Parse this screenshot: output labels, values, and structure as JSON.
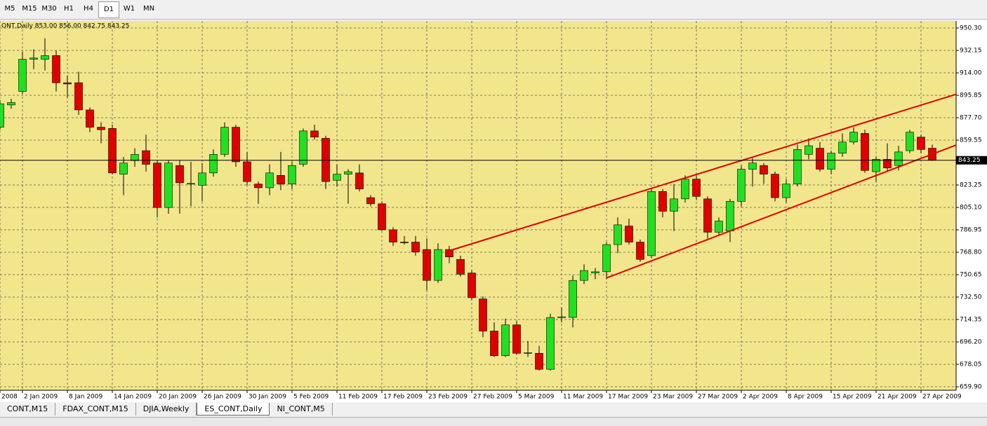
{
  "toolbar": {
    "buttons": [
      "M5",
      "M15",
      "M30",
      "H1",
      "H4",
      "D1",
      "W1",
      "MN"
    ],
    "active": "D1"
  },
  "tabs": {
    "items": [
      "CONT,M15",
      "FDAX_CONT,M15",
      "DJIA,Weekly",
      "ES_CONT,Daily",
      "NI_CONT,M5"
    ],
    "active": "ES_CONT,Daily"
  },
  "chart_data": {
    "type": "candlestick",
    "header": "ONT,Daily  853.00 856.00 842.75 843.25",
    "up_color": "#21e021",
    "down_color": "#e00000",
    "background": "#f2e68c",
    "grid": true,
    "ylim": [
      657.06,
      955.97
    ],
    "yticks": [
      {
        "value": 950.3,
        "label": "950.30"
      },
      932.15,
      {
        "value": 914,
        "label": "914.00"
      },
      895.85,
      {
        "value": 877.7,
        "label": "877.70"
      },
      859.55,
      823.25,
      {
        "value": 805.1,
        "label": "805.10"
      },
      786.95,
      {
        "value": 768.8,
        "label": "768.80"
      },
      750.65,
      {
        "value": 732.5,
        "label": "732.50"
      },
      714.35,
      {
        "value": 696.2,
        "label": "696.20"
      },
      678.05,
      {
        "value": 659.9,
        "label": "659.90"
      }
    ],
    "last_price": {
      "value": 843.25,
      "label": "843.25"
    },
    "categories": [
      "2008",
      null,
      "2 Jan 2009",
      null,
      null,
      null,
      "8 Jan 2009",
      null,
      null,
      null,
      "14 Jan 2009",
      null,
      null,
      null,
      "20 Jan 2009",
      null,
      null,
      null,
      "26 Jan 2009",
      null,
      null,
      null,
      "30 Jan 2009",
      null,
      null,
      null,
      "5 Feb 2009",
      null,
      null,
      null,
      "11 Feb 2009",
      null,
      null,
      null,
      "17 Feb 2009",
      null,
      null,
      null,
      "23 Feb 2009",
      null,
      null,
      null,
      "27 Feb 2009",
      null,
      null,
      null,
      "5 Mar 2009",
      null,
      null,
      null,
      "11 Mar 2009",
      null,
      null,
      null,
      "17 Mar 2009",
      null,
      null,
      null,
      "23 Mar 2009",
      null,
      null,
      null,
      "27 Mar 2009",
      null,
      null,
      null,
      "2 Apr 2009",
      null,
      null,
      null,
      "8 Apr 2009",
      null,
      null,
      null,
      "15 Apr 2009",
      null,
      null,
      null,
      "21 Apr 2009",
      null,
      null,
      null,
      "27 Apr 2009",
      null
    ],
    "open": [
      870,
      888,
      899,
      925,
      925,
      928,
      906,
      906,
      884,
      870,
      869,
      832,
      843,
      851,
      841,
      805,
      839,
      824,
      823,
      833,
      848,
      870,
      842,
      824,
      821,
      831,
      824,
      840,
      867,
      861,
      827,
      832,
      833,
      813,
      808,
      787,
      777,
      777,
      771,
      746,
      771,
      763,
      752,
      731,
      705,
      685,
      710,
      687,
      687,
      674,
      716,
      716,
      746,
      752,
      753,
      775,
      790,
      777,
      766,
      818,
      802,
      812,
      828,
      812,
      785,
      786,
      810,
      836,
      839,
      832,
      813,
      824,
      848,
      853,
      836,
      849,
      858,
      865,
      834,
      844,
      839,
      851,
      862,
      853
    ],
    "high": [
      892,
      893,
      931,
      933,
      942,
      932,
      912,
      915,
      886,
      874,
      872,
      846,
      853,
      864,
      843,
      843,
      843,
      842,
      841,
      852,
      874,
      872,
      850,
      826,
      840,
      850,
      842,
      869,
      872,
      863,
      840,
      836,
      840,
      815,
      810,
      789,
      782,
      782,
      780,
      776,
      774,
      766,
      754,
      733,
      712,
      715,
      713,
      697,
      693,
      719,
      724,
      750,
      759,
      756,
      777,
      797,
      796,
      779,
      821,
      820,
      824,
      831,
      831,
      814,
      797,
      812,
      839,
      845,
      841,
      834,
      828,
      856,
      861,
      858,
      851,
      865,
      870,
      868,
      846,
      857,
      855,
      868,
      864,
      856
    ],
    "low": [
      868,
      885,
      897,
      917,
      916,
      899,
      894,
      880,
      866,
      857,
      832,
      815,
      838,
      834,
      797,
      800,
      800,
      806,
      810,
      830,
      846,
      838,
      823,
      808,
      815,
      819,
      820,
      838,
      860,
      820,
      822,
      808,
      818,
      806,
      786,
      774,
      775,
      766,
      738,
      744,
      760,
      749,
      730,
      700,
      684,
      684,
      686,
      684,
      673,
      673,
      712,
      708,
      743,
      747,
      747,
      768,
      775,
      761,
      764,
      797,
      786,
      809,
      811,
      780,
      782,
      777,
      806,
      822,
      824,
      810,
      809,
      822,
      844,
      834,
      832,
      846,
      856,
      833,
      826,
      834,
      835,
      849,
      849,
      842.75
    ],
    "close": [
      889,
      890,
      925,
      926,
      928,
      906,
      905,
      884,
      870,
      868,
      833,
      841,
      848,
      840,
      805,
      841,
      825,
      824.5,
      833,
      848,
      870,
      842,
      826,
      821,
      833,
      824,
      839,
      867,
      862,
      826,
      832,
      834,
      820,
      808,
      787,
      777,
      776.5,
      769,
      746,
      771,
      765,
      751,
      732,
      705,
      685,
      710,
      687,
      687.5,
      674,
      716,
      716.5,
      746,
      754,
      753,
      775,
      791,
      777,
      763,
      818,
      802,
      812,
      828,
      814,
      785,
      794,
      810,
      836,
      841,
      832,
      813,
      824,
      852,
      855,
      836,
      849,
      858,
      866,
      835,
      844,
      837,
      850,
      866,
      852,
      843.25
    ],
    "trendlines": [
      {
        "color": "#e00000",
        "x": [
          40,
          83
        ],
        "y": [
          770,
          890.7
        ]
      },
      {
        "color": "#e00000",
        "x": [
          54,
          83
        ],
        "y": [
          748,
          848.2
        ]
      }
    ]
  }
}
